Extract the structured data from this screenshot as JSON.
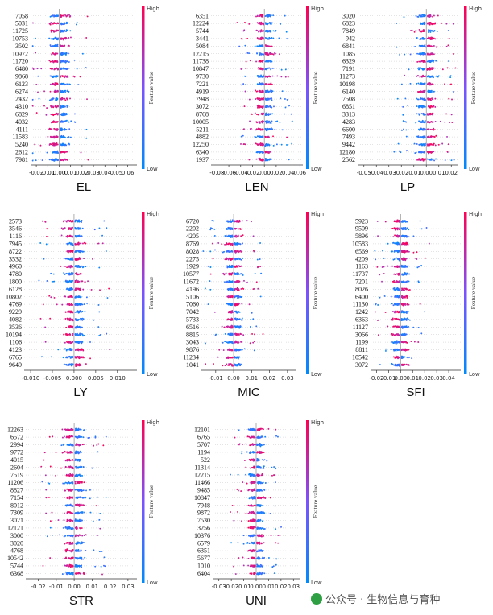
{
  "watermark": "公众号 · 生物信息与育种",
  "colorbar": {
    "high": "High",
    "low": "Low",
    "label": "Feature value",
    "high_color": "#ff0052",
    "low_color": "#008bfb"
  },
  "chart_data": [
    {
      "type": "scatter",
      "title": "EL",
      "xlim": [
        -0.025,
        0.068
      ],
      "xticks": [
        -0.02,
        -0.01,
        0.0,
        0.01,
        0.02,
        0.03,
        0.04,
        0.05,
        0.06
      ],
      "xtick_labels": [
        "-0.02",
        "-0.01",
        "0.00",
        "0.01",
        "0.02",
        "0.03",
        "0.04",
        "0.05",
        "0.06"
      ],
      "features": [
        "7058",
        "5031",
        "11725",
        "10753",
        "3502",
        "10972",
        "11720",
        "6480",
        "9868",
        "6123",
        "6274",
        "2432",
        "4310",
        "6829",
        "4032",
        "4111",
        "11583",
        "5240",
        "2612",
        "7981"
      ]
    },
    {
      "type": "scatter",
      "title": "LEN",
      "xlim": [
        -0.09,
        0.065
      ],
      "xticks": [
        -0.08,
        -0.06,
        -0.04,
        -0.02,
        0.0,
        0.02,
        0.04,
        0.06
      ],
      "xtick_labels": [
        "-0.08",
        "-0.06",
        "-0.04",
        "-0.02",
        "0.00",
        "0.02",
        "0.04",
        "0.06"
      ],
      "features": [
        "6351",
        "12224",
        "5744",
        "3441",
        "5084",
        "12215",
        "11738",
        "10847",
        "9730",
        "7221",
        "4919",
        "7948",
        "3072",
        "8768",
        "10005",
        "5211",
        "4882",
        "12250",
        "6340",
        "1937"
      ]
    },
    {
      "type": "scatter",
      "title": "LP",
      "xlim": [
        -0.055,
        0.025
      ],
      "xticks": [
        -0.05,
        -0.04,
        -0.03,
        -0.02,
        -0.01,
        0.0,
        0.01,
        0.02
      ],
      "xtick_labels": [
        "-0.05",
        "-0.04",
        "-0.03",
        "-0.02",
        "-0.01",
        "0.00",
        "0.01",
        "0.02"
      ],
      "features": [
        "3020",
        "6823",
        "7849",
        "942",
        "6841",
        "1085",
        "6329",
        "7191",
        "11273",
        "10198",
        "6140",
        "7508",
        "6851",
        "3313",
        "4283",
        "6600",
        "7493",
        "9442",
        "12180",
        "2562"
      ]
    },
    {
      "type": "scatter",
      "title": "LY",
      "xlim": [
        -0.0115,
        0.0145
      ],
      "xticks": [
        -0.01,
        -0.005,
        0.0,
        0.005,
        0.01
      ],
      "xtick_labels": [
        "-0.010",
        "-0.005",
        "0.000",
        "0.005",
        "0.010"
      ],
      "features": [
        "2573",
        "3546",
        "1116",
        "7945",
        "8722",
        "3532",
        "4960",
        "4780",
        "1800",
        "6128",
        "10802",
        "4769",
        "9229",
        "4082",
        "3536",
        "10194",
        "1106",
        "4123",
        "6765",
        "9649"
      ]
    },
    {
      "type": "scatter",
      "title": "MIC",
      "xlim": [
        -0.018,
        0.035
      ],
      "xticks": [
        -0.01,
        0.0,
        0.01,
        0.02,
        0.03
      ],
      "xtick_labels": [
        "-0.01",
        "0.00",
        "0.01",
        "0.02",
        "0.03"
      ],
      "features": [
        "6720",
        "2202",
        "4205",
        "8769",
        "8028",
        "2275",
        "1929",
        "10577",
        "11672",
        "4196",
        "5106",
        "7060",
        "7042",
        "5733",
        "6516",
        "8815",
        "3043",
        "9876",
        "11234",
        "1041"
      ]
    },
    {
      "type": "scatter",
      "title": "SFI",
      "xlim": [
        -0.025,
        0.05
      ],
      "xticks": [
        -0.02,
        -0.01,
        0.0,
        0.01,
        0.02,
        0.03,
        0.04
      ],
      "xtick_labels": [
        "-0.02",
        "-0.01",
        "0.00",
        "0.01",
        "0.02",
        "0.03",
        "0.04"
      ],
      "features": [
        "5923",
        "9509",
        "5896",
        "10583",
        "6569",
        "4209",
        "1163",
        "11737",
        "7201",
        "8026",
        "6400",
        "11130",
        "1242",
        "6363",
        "11127",
        "3066",
        "1199",
        "8811",
        "10542",
        "3072"
      ]
    },
    {
      "type": "scatter",
      "title": "STR",
      "xlim": [
        -0.027,
        0.035
      ],
      "xticks": [
        -0.02,
        -0.01,
        0.0,
        0.01,
        0.02,
        0.03
      ],
      "xtick_labels": [
        "-0.02",
        "-0.01",
        "0.00",
        "0.01",
        "0.02",
        "0.03"
      ],
      "features": [
        "12263",
        "6572",
        "2994",
        "9772",
        "4015",
        "2604",
        "7519",
        "11206",
        "8827",
        "7154",
        "8012",
        "7309",
        "3021",
        "12121",
        "3000",
        "3020",
        "4768",
        "10542",
        "5744",
        "6368"
      ]
    },
    {
      "type": "scatter",
      "title": "UNI",
      "xlim": [
        -0.035,
        0.035
      ],
      "xticks": [
        -0.03,
        -0.02,
        -0.01,
        0.0,
        0.01,
        0.02,
        0.03
      ],
      "xtick_labels": [
        "-0.03",
        "-0.02",
        "-0.01",
        "0.00",
        "0.01",
        "0.02",
        "0.03"
      ],
      "features": [
        "12101",
        "6765",
        "5707",
        "1194",
        "522",
        "11314",
        "12215",
        "11466",
        "9485",
        "10847",
        "7948",
        "9872",
        "7530",
        "3256",
        "10376",
        "6579",
        "6351",
        "5677",
        "1010",
        "6404"
      ]
    }
  ]
}
